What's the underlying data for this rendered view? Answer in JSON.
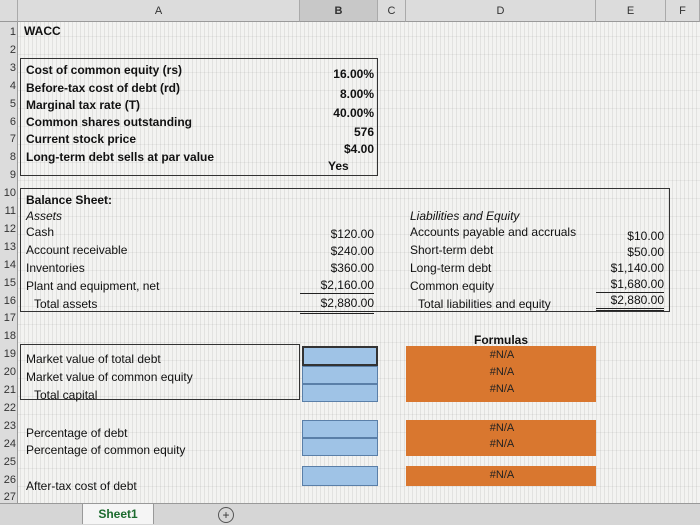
{
  "columns": [
    "A",
    "B",
    "C",
    "D",
    "E",
    "F"
  ],
  "rows": [
    "1",
    "2",
    "3",
    "4",
    "5",
    "6",
    "7",
    "8",
    "9",
    "10",
    "11",
    "12",
    "13",
    "14",
    "15",
    "16",
    "17",
    "18",
    "19",
    "20",
    "21",
    "22",
    "23",
    "24",
    "25",
    "26",
    "27"
  ],
  "title": "WACC",
  "inputs": [
    {
      "label": "Cost of common equity (rs)",
      "value": "16.00%"
    },
    {
      "label": "Before-tax cost of debt (rd)",
      "value": "8.00%"
    },
    {
      "label": "Marginal tax rate (T)",
      "value": "40.00%"
    },
    {
      "label": "Common shares outstanding",
      "value": "576"
    },
    {
      "label": "Current stock price",
      "value": "$4.00"
    },
    {
      "label": "Long-term debt sells at par value",
      "value": "Yes"
    }
  ],
  "balance_sheet": {
    "title": "Balance Sheet:",
    "assets_header": "Assets",
    "assets": [
      {
        "label": "Cash",
        "value": "$120.00"
      },
      {
        "label": "Account receivable",
        "value": "$240.00"
      },
      {
        "label": "Inventories",
        "value": "$360.00"
      },
      {
        "label": "Plant and equipment, net",
        "value": "$2,160.00"
      },
      {
        "label": "Total assets",
        "value": "$2,880.00"
      }
    ],
    "liabilities_header": "Liabilities and Equity",
    "liabilities": [
      {
        "label": "Accounts payable and accruals",
        "value": "$10.00"
      },
      {
        "label": "Short-term debt",
        "value": "$50.00"
      },
      {
        "label": "Long-term debt",
        "value": "$1,140.00"
      },
      {
        "label": "Common equity",
        "value": "$1,680.00"
      },
      {
        "label": "Total liabilities and equity",
        "value": "$2,880.00"
      }
    ]
  },
  "formulas_header": "Formulas",
  "calc": [
    {
      "label": "Market value of total debt",
      "formula": "#N/A"
    },
    {
      "label": "Market value of common equity",
      "formula": "#N/A"
    },
    {
      "label": "Total capital",
      "formula": "#N/A"
    },
    {
      "label": "Percentage of debt",
      "formula": "#N/A"
    },
    {
      "label": "Percentage of common equity",
      "formula": "#N/A"
    },
    {
      "label": "After-tax cost of debt",
      "formula": "#N/A"
    }
  ],
  "sheet_tab": "Sheet1",
  "colors": {
    "blue_fill": "#9fc3e6",
    "orange_fill": "#d9772f",
    "tab_text": "#1c6b2e"
  }
}
